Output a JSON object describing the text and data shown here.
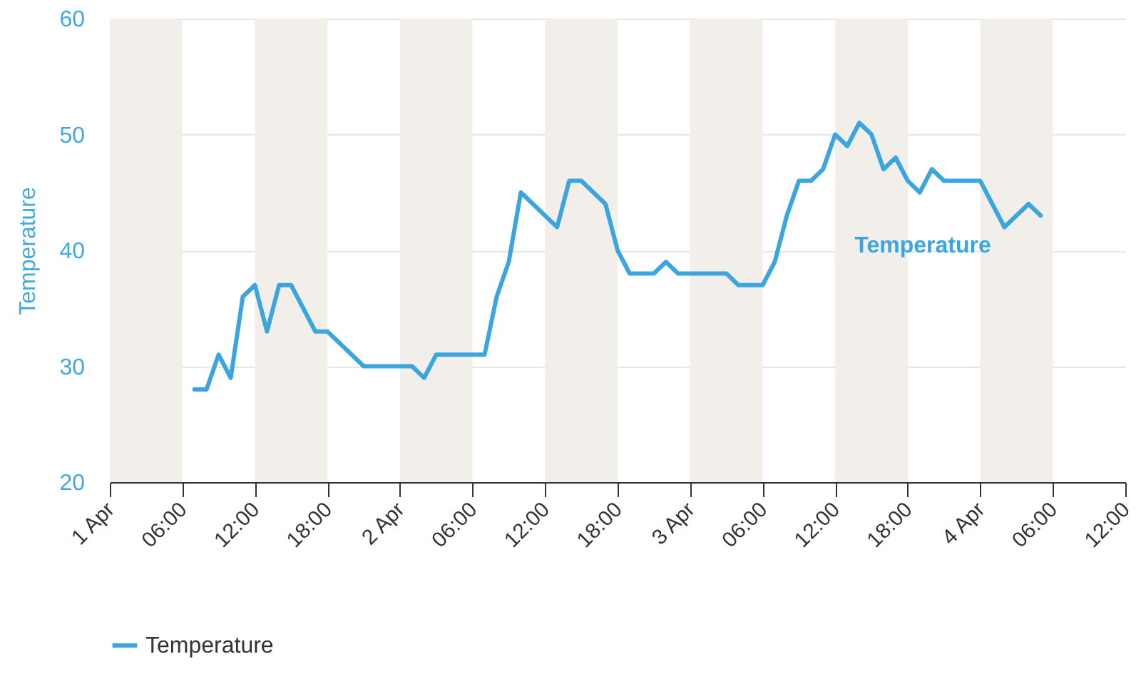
{
  "chart_data": {
    "type": "line",
    "ylabel": "Temperature",
    "x": [
      "--04-01T07:00",
      "--04-01T08:00",
      "--04-01T09:00",
      "--04-01T10:00",
      "--04-01T11:00",
      "--04-01T12:00",
      "--04-01T13:00",
      "--04-01T14:00",
      "--04-01T15:00",
      "--04-01T17:00",
      "--04-01T18:00",
      "--04-01T21:00",
      "--04-02T01:00",
      "--04-02T02:00",
      "--04-02T03:00",
      "--04-02T07:00",
      "--04-02T08:00",
      "--04-02T09:00",
      "--04-02T10:00",
      "--04-02T13:00",
      "--04-02T14:00",
      "--04-02T15:00",
      "--04-02T17:00",
      "--04-02T18:00",
      "--04-02T19:00",
      "--04-02T21:00",
      "--04-02T22:00",
      "--04-02T23:00",
      "--04-03T03:00",
      "--04-03T04:00",
      "--04-03T06:00",
      "--04-03T07:00",
      "--04-03T08:00",
      "--04-03T09:00",
      "--04-03T10:00",
      "--04-03T11:00",
      "--04-03T12:00",
      "--04-03T13:00",
      "--04-03T14:00",
      "--04-03T15:00",
      "--04-03T16:00",
      "--04-03T17:00",
      "--04-03T18:00",
      "--04-03T19:00",
      "--04-03T20:00",
      "--04-03T21:00",
      "--04-04T00:00",
      "--04-04T02:00",
      "--04-04T04:00",
      "--04-04T05:00"
    ],
    "series": [
      {
        "name": "Temperature",
        "color": "#3ba5df",
        "values": [
          28,
          28,
          31,
          29,
          36,
          37,
          33,
          37,
          37,
          33,
          33,
          30,
          30,
          29,
          31,
          31,
          36,
          39,
          45,
          42,
          46,
          46,
          44,
          40,
          38,
          38,
          39,
          38,
          38,
          37,
          37,
          39,
          43,
          46,
          46,
          47,
          50,
          49,
          51,
          50,
          47,
          48,
          46,
          45,
          47,
          46,
          46,
          42,
          44,
          43
        ]
      }
    ],
    "xlim": [
      "--04-01T00:00",
      "--04-04T12:00"
    ],
    "xticks": [
      {
        "value": "--04-01T00:00",
        "label": "1 Apr"
      },
      {
        "value": "--04-01T06:00",
        "label": "06:00"
      },
      {
        "value": "--04-01T12:00",
        "label": "12:00"
      },
      {
        "value": "--04-01T18:00",
        "label": "18:00"
      },
      {
        "value": "--04-02T00:00",
        "label": "2 Apr"
      },
      {
        "value": "--04-02T06:00",
        "label": "06:00"
      },
      {
        "value": "--04-02T12:00",
        "label": "12:00"
      },
      {
        "value": "--04-02T18:00",
        "label": "18:00"
      },
      {
        "value": "--04-03T00:00",
        "label": "3 Apr"
      },
      {
        "value": "--04-03T06:00",
        "label": "06:00"
      },
      {
        "value": "--04-03T12:00",
        "label": "12:00"
      },
      {
        "value": "--04-03T18:00",
        "label": "18:00"
      },
      {
        "value": "--04-04T00:00",
        "label": "4 Apr"
      },
      {
        "value": "--04-04T06:00",
        "label": "06:00"
      },
      {
        "value": "--04-04T12:00",
        "label": "12:00"
      }
    ],
    "ylim": [
      20,
      60
    ],
    "yticks": [
      20,
      30,
      40,
      50,
      60
    ],
    "bands": [
      {
        "axis": "x",
        "from": "--04-01T00:00",
        "to": "--04-01T06:00",
        "color": "#f2efeb"
      },
      {
        "axis": "x",
        "from": "--04-01T12:00",
        "to": "--04-01T18:00",
        "color": "#f2efeb"
      },
      {
        "axis": "x",
        "from": "--04-02T00:00",
        "to": "--04-02T06:00",
        "color": "#f2efeb"
      },
      {
        "axis": "x",
        "from": "--04-02T12:00",
        "to": "--04-02T18:00",
        "color": "#f2efeb"
      },
      {
        "axis": "x",
        "from": "--04-03T00:00",
        "to": "--04-03T06:00",
        "color": "#f2efeb"
      },
      {
        "axis": "x",
        "from": "--04-03T12:00",
        "to": "--04-03T18:00",
        "color": "#f2efeb"
      },
      {
        "axis": "x",
        "from": "--04-04T00:00",
        "to": "--04-04T06:00",
        "color": "#f2efeb"
      }
    ],
    "grid": "y",
    "legend": "bottom",
    "marker": "none",
    "line_style": "solid"
  }
}
